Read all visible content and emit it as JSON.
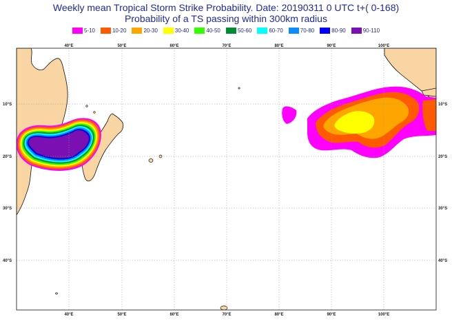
{
  "title_line1": "Weekly mean Tropical Storm Strike Probability. Date: 20190311  0 UTC   t+(  0-168)",
  "title_line2": "Probability of a TS passing within  300km radius",
  "legend": [
    {
      "label": "5-10",
      "color": "#ff00ff"
    },
    {
      "label": "10-20",
      "color": "#ff5a00"
    },
    {
      "label": "20-30",
      "color": "#ffa500"
    },
    {
      "label": "30-40",
      "color": "#ffff00"
    },
    {
      "label": "40-50",
      "color": "#32ff00"
    },
    {
      "label": "50-60",
      "color": "#008c30"
    },
    {
      "label": "60-70",
      "color": "#00ffff"
    },
    {
      "label": "70-80",
      "color": "#0a8cff"
    },
    {
      "label": "80-90",
      "color": "#0000ff"
    },
    {
      "label": "90-110",
      "color": "#7a10b4"
    }
  ],
  "longitude_labels": [
    "40°E",
    "50°E",
    "60°E",
    "70°E",
    "80°E",
    "90°E",
    "100°E"
  ],
  "latitude_labels": [
    "10°S",
    "20°S",
    "30°S",
    "40°S"
  ],
  "colors": {
    "land": "#f8d5a3",
    "coast": "#111111",
    "grid": "#9a9a9a",
    "title": "#1f2a99"
  }
}
